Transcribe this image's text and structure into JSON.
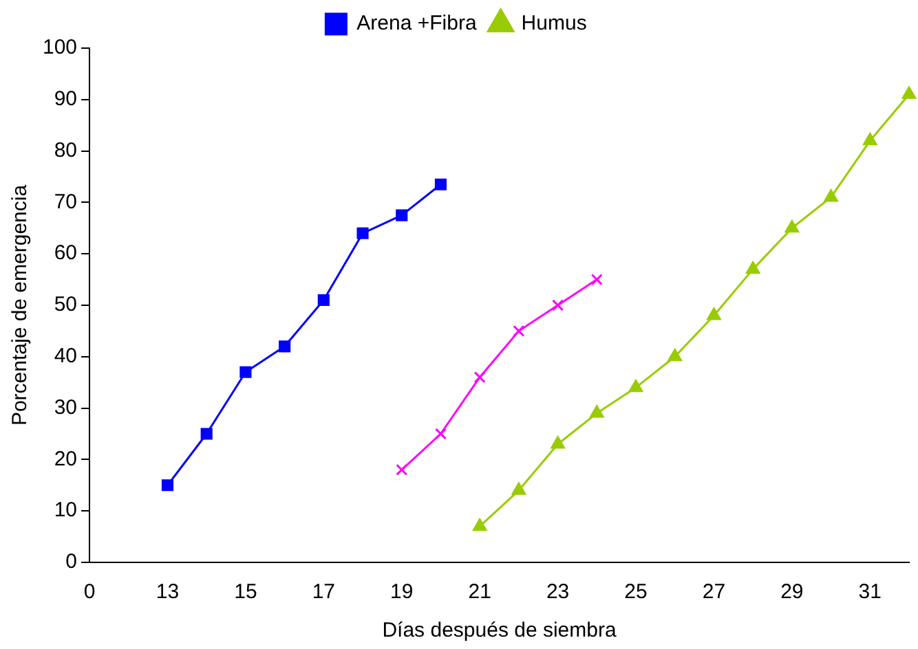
{
  "chart_data": {
    "type": "line",
    "xlabel": "Días después de siembra",
    "ylabel": "Porcentaje de emergencia",
    "categories": [
      "0",
      null,
      "13",
      null,
      "15",
      null,
      "17",
      null,
      "19",
      null,
      "21",
      null,
      "23",
      null,
      "25",
      null,
      "27",
      null,
      "29",
      null,
      "31",
      null
    ],
    "ylim": [
      0,
      100
    ],
    "yticks": [
      0,
      10,
      20,
      30,
      40,
      50,
      60,
      70,
      80,
      90,
      100
    ],
    "grid": false,
    "legend": "top",
    "series": [
      {
        "name": "Arena +Fibra",
        "color": "#0000ff",
        "marker": "square",
        "values": [
          null,
          null,
          15,
          25,
          37,
          42,
          51,
          64,
          67.5,
          73.5,
          null,
          null,
          null,
          null,
          null,
          null,
          null,
          null,
          null,
          null,
          null,
          null
        ]
      },
      {
        "name": "Humus",
        "color": "#99cc00",
        "marker": "triangle",
        "values": [
          null,
          null,
          null,
          null,
          null,
          null,
          null,
          null,
          null,
          null,
          7,
          14,
          23,
          29,
          34,
          40,
          48,
          57,
          65,
          71,
          82,
          91
        ]
      },
      {
        "color": "#ff00ff",
        "marker": "cross",
        "values": [
          null,
          null,
          null,
          null,
          null,
          null,
          null,
          null,
          18,
          25,
          36,
          45,
          50,
          55,
          null,
          null,
          null,
          null,
          null,
          null,
          null,
          null
        ]
      }
    ]
  }
}
